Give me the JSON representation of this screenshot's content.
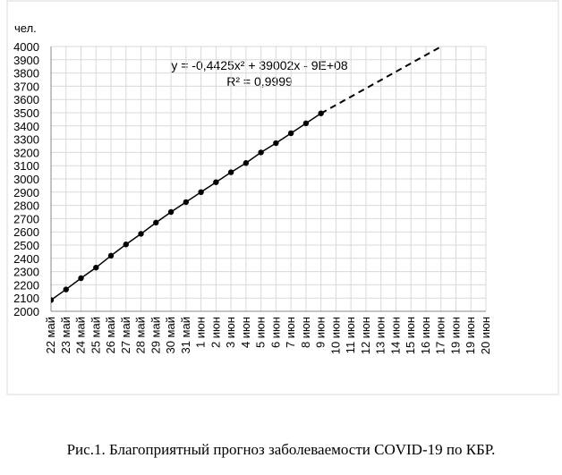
{
  "chart_data": {
    "type": "line",
    "y_label": "чел.",
    "equation": "y = -0,4425x² + 39002x - 9E+08",
    "r_squared": "R² = 0,9999",
    "caption": "Рис.1. Благоприятный прогноз заболеваемости COVID-19 по КБР.",
    "categories": [
      "22 май",
      "23 май",
      "24 май",
      "25 май",
      "26 май",
      "27 май",
      "28 май",
      "29 май",
      "30 май",
      "31 май",
      "1 июн",
      "2 июн",
      "3 июн",
      "4 июн",
      "5 июн",
      "6 июн",
      "7 июн",
      "8 июн",
      "9 июн",
      "10 июн",
      "11 июн",
      "12 июн",
      "13 июн",
      "14 июн",
      "15 июн",
      "16 июн",
      "17 июн",
      "19 июн",
      "19 июн",
      "20 июн"
    ],
    "series": [
      {
        "color": "#000000",
        "markers": true,
        "dashed": false,
        "values": [
          2085,
          2165,
          2250,
          2330,
          2420,
          2505,
          2585,
          2670,
          2750,
          2825,
          2900,
          2975,
          3050,
          3120,
          3200,
          3270,
          3345,
          3420,
          3495,
          null,
          null,
          null,
          null,
          null,
          null,
          null,
          null,
          null,
          null,
          null
        ]
      },
      {
        "color": "#000000",
        "markers": false,
        "dashed": true,
        "values": [
          null,
          null,
          null,
          null,
          null,
          null,
          null,
          null,
          null,
          null,
          null,
          null,
          null,
          null,
          null,
          null,
          null,
          null,
          3495,
          3558,
          3621,
          3684,
          3747,
          3810,
          3873,
          3936,
          3999,
          null,
          null,
          null
        ]
      }
    ],
    "ylim": [
      2000,
      4000
    ],
    "yticks": [
      2000,
      2100,
      2200,
      2300,
      2400,
      2500,
      2600,
      2700,
      2800,
      2900,
      3000,
      3100,
      3200,
      3300,
      3400,
      3500,
      3600,
      3700,
      3800,
      3900,
      4000
    ],
    "grid": true
  }
}
